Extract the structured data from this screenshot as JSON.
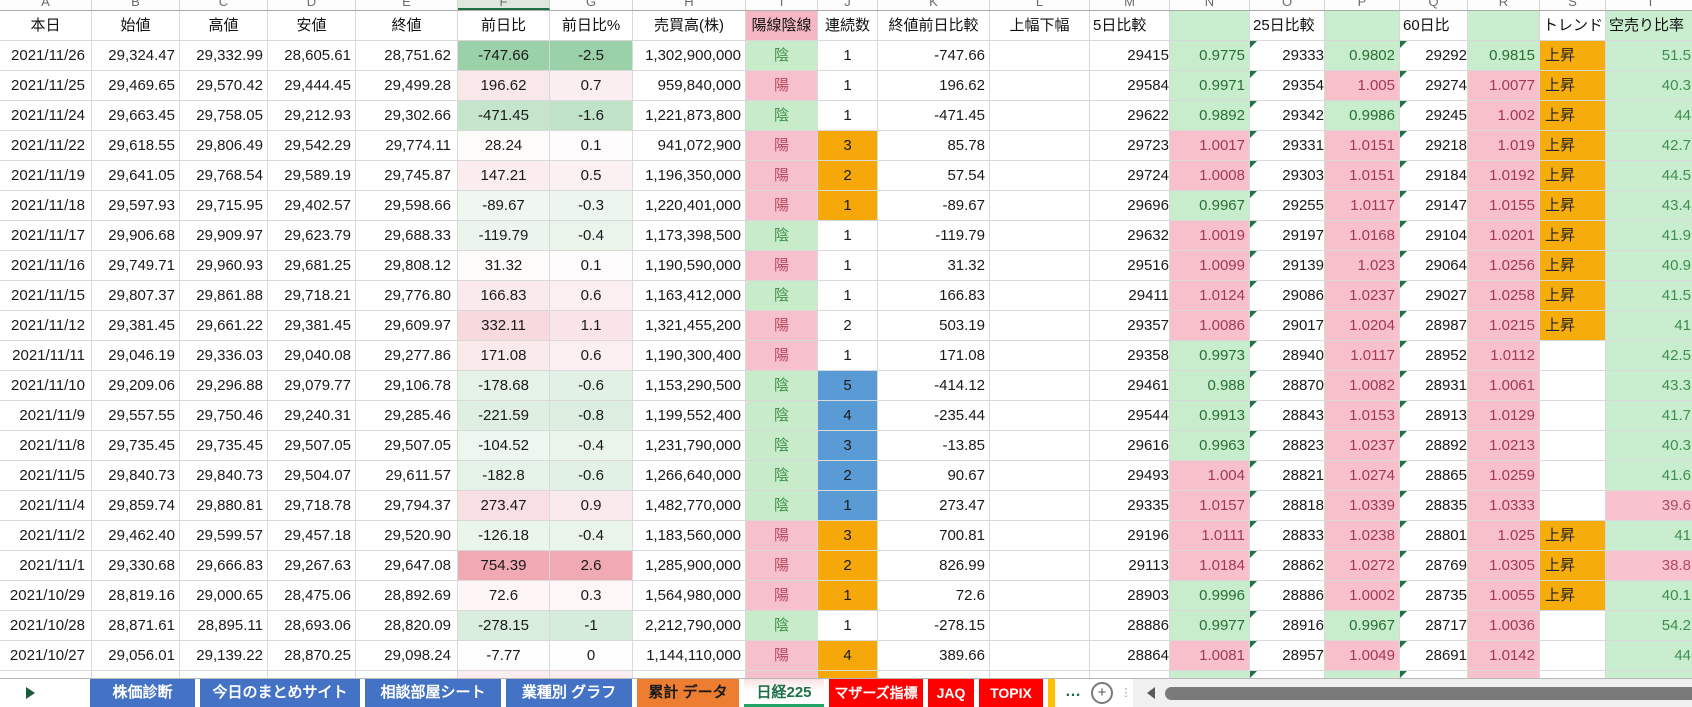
{
  "app": "spreadsheet",
  "column_letters": [
    "A",
    "B",
    "C",
    "D",
    "E",
    "F",
    "G",
    "H",
    "I",
    "J",
    "K",
    "L",
    "M",
    "N",
    "O",
    "P",
    "Q",
    "R",
    "S",
    "T"
  ],
  "selected_column_letter": "F",
  "selection": {
    "row_index": 11,
    "column": "chg",
    "value": "-178.68"
  },
  "header": {
    "cells": [
      {
        "label": "本日"
      },
      {
        "label": "始値"
      },
      {
        "label": "高値"
      },
      {
        "label": "安値"
      },
      {
        "label": "終値"
      },
      {
        "label": "前日比"
      },
      {
        "label": "前日比%"
      },
      {
        "label": "売買高(株)"
      },
      {
        "label": "陽線陰線",
        "style": "pink"
      },
      {
        "label": "連続数"
      },
      {
        "label": "終値前日比較"
      },
      {
        "label": "上幅下幅"
      },
      {
        "label": "5日比較",
        "style": "left"
      },
      {
        "label": "",
        "style": "green"
      },
      {
        "label": "25日比較",
        "style": "left"
      },
      {
        "label": "",
        "style": "green"
      },
      {
        "label": "60日比",
        "style": "left"
      },
      {
        "label": "",
        "style": "green"
      },
      {
        "label": "トレンド",
        "style": "left"
      },
      {
        "label": "空売り比率",
        "style": "greentext"
      }
    ]
  },
  "colors": {
    "accent_green": "#21a366",
    "selection_border": "#1f7245",
    "good_bg": "#c6efce",
    "bad_bg": "#ffc7ce",
    "streak_orange": "#f6a70a",
    "streak_blue": "#5b9bd5",
    "trend_orange": "#f6ad0c",
    "tab_blue": "#4472c4",
    "tab_orange": "#ed7d31",
    "tab_red": "#fe0000"
  },
  "rows": [
    {
      "date": "2021/11/26",
      "open": "29,324.47",
      "high": "29,332.99",
      "low": "28,605.61",
      "close": "28,751.62",
      "chg": "-747.66",
      "chg_bg": "#9ad1a8",
      "pct": "-2.5",
      "pct_bg": "#9ad1a8",
      "vol": "1,302,900,000",
      "candle": "陰",
      "streak": "1",
      "streak_color": "none",
      "diff": "-747.66",
      "range": "",
      "d5": "29415",
      "r5": "0.9775",
      "d25": "29333",
      "r25": "0.9802",
      "d60": "29292",
      "r60": "0.9815",
      "trend": "上昇",
      "short": "51.5",
      "short_alert": false
    },
    {
      "date": "2021/11/25",
      "open": "29,469.65",
      "high": "29,570.42",
      "low": "29,444.45",
      "close": "29,499.28",
      "chg": "196.62",
      "chg_bg": "#fae7ea",
      "pct": "0.7",
      "pct_bg": "#fbeef0",
      "vol": "959,840,000",
      "candle": "陽",
      "streak": "1",
      "streak_color": "none",
      "diff": "196.62",
      "range": "",
      "d5": "29584",
      "r5": "0.9971",
      "d25": "29354",
      "r25": "1.005",
      "d60": "29274",
      "r60": "1.0077",
      "trend": "上昇",
      "short": "40.3",
      "short_alert": false
    },
    {
      "date": "2021/11/24",
      "open": "29,663.45",
      "high": "29,758.05",
      "low": "29,212.93",
      "close": "29,302.66",
      "chg": "-471.45",
      "chg_bg": "#c4e5cb",
      "pct": "-1.6",
      "pct_bg": "#c0e3c8",
      "vol": "1,221,873,800",
      "candle": "陰",
      "streak": "1",
      "streak_color": "none",
      "diff": "-471.45",
      "range": "",
      "d5": "29622",
      "r5": "0.9892",
      "d25": "29342",
      "r25": "0.9986",
      "d60": "29245",
      "r60": "1.002",
      "trend": "上昇",
      "short": "44",
      "short_alert": false
    },
    {
      "date": "2021/11/22",
      "open": "29,618.55",
      "high": "29,806.49",
      "low": "29,542.29",
      "close": "29,774.11",
      "chg": "28.24",
      "chg_bg": "#fefbfb",
      "pct": "0.1",
      "pct_bg": "#fefcfc",
      "vol": "941,072,900",
      "candle": "陽",
      "streak": "3",
      "streak_color": "orange",
      "diff": "85.78",
      "range": "",
      "d5": "29723",
      "r5": "1.0017",
      "d25": "29331",
      "r25": "1.0151",
      "d60": "29218",
      "r60": "1.019",
      "trend": "上昇",
      "short": "42.7",
      "short_alert": false
    },
    {
      "date": "2021/11/19",
      "open": "29,641.05",
      "high": "29,768.54",
      "low": "29,589.19",
      "close": "29,745.87",
      "chg": "147.21",
      "chg_bg": "#fbecee",
      "pct": "0.5",
      "pct_bg": "#fcf1f2",
      "vol": "1,196,350,000",
      "candle": "陽",
      "streak": "2",
      "streak_color": "orange",
      "diff": "57.54",
      "range": "",
      "d5": "29724",
      "r5": "1.0008",
      "d25": "29303",
      "r25": "1.0151",
      "d60": "29184",
      "r60": "1.0192",
      "trend": "上昇",
      "short": "44.5",
      "short_alert": false
    },
    {
      "date": "2021/11/18",
      "open": "29,597.93",
      "high": "29,715.95",
      "low": "29,402.57",
      "close": "29,598.66",
      "chg": "-89.67",
      "chg_bg": "#eff7f0",
      "pct": "-0.3",
      "pct_bg": "#ecf6ee",
      "vol": "1,220,401,000",
      "candle": "陽",
      "streak": "1",
      "streak_color": "orange",
      "diff": "-89.67",
      "range": "",
      "d5": "29696",
      "r5": "0.9967",
      "d25": "29255",
      "r25": "1.0117",
      "d60": "29147",
      "r60": "1.0155",
      "trend": "上昇",
      "short": "43.4",
      "short_alert": false
    },
    {
      "date": "2021/11/17",
      "open": "29,906.68",
      "high": "29,909.97",
      "low": "29,623.79",
      "close": "29,688.33",
      "chg": "-119.79",
      "chg_bg": "#ebf5ed",
      "pct": "-0.4",
      "pct_bg": "#e9f4eb",
      "vol": "1,173,398,500",
      "candle": "陰",
      "streak": "1",
      "streak_color": "none",
      "diff": "-119.79",
      "range": "",
      "d5": "29632",
      "r5": "1.0019",
      "d25": "29197",
      "r25": "1.0168",
      "d60": "29104",
      "r60": "1.0201",
      "trend": "上昇",
      "short": "41.9",
      "short_alert": false
    },
    {
      "date": "2021/11/16",
      "open": "29,749.71",
      "high": "29,960.93",
      "low": "29,681.25",
      "close": "29,808.12",
      "chg": "31.32",
      "chg_bg": "#fefbfb",
      "pct": "0.1",
      "pct_bg": "#fefcfc",
      "vol": "1,190,590,000",
      "candle": "陽",
      "streak": "1",
      "streak_color": "none",
      "diff": "31.32",
      "range": "",
      "d5": "29516",
      "r5": "1.0099",
      "d25": "29139",
      "r25": "1.023",
      "d60": "29064",
      "r60": "1.0256",
      "trend": "上昇",
      "short": "40.9",
      "short_alert": false
    },
    {
      "date": "2021/11/15",
      "open": "29,807.37",
      "high": "29,861.88",
      "low": "29,718.21",
      "close": "29,776.80",
      "chg": "166.83",
      "chg_bg": "#fbeaed",
      "pct": "0.6",
      "pct_bg": "#fbeff1",
      "vol": "1,163,412,000",
      "candle": "陰",
      "streak": "1",
      "streak_color": "none",
      "diff": "166.83",
      "range": "",
      "d5": "29411",
      "r5": "1.0124",
      "d25": "29086",
      "r25": "1.0237",
      "d60": "29027",
      "r60": "1.0258",
      "trend": "上昇",
      "short": "41.5",
      "short_alert": false
    },
    {
      "date": "2021/11/12",
      "open": "29,381.45",
      "high": "29,661.22",
      "low": "29,381.45",
      "close": "29,609.97",
      "chg": "332.11",
      "chg_bg": "#f7d9de",
      "pct": "1.1",
      "pct_bg": "#f9e5e9",
      "vol": "1,321,455,200",
      "candle": "陽",
      "streak": "2",
      "streak_color": "none",
      "diff": "503.19",
      "range": "",
      "d5": "29357",
      "r5": "1.0086",
      "d25": "29017",
      "r25": "1.0204",
      "d60": "28987",
      "r60": "1.0215",
      "trend": "上昇",
      "short": "41",
      "short_alert": false
    },
    {
      "date": "2021/11/11",
      "open": "29,046.19",
      "high": "29,336.03",
      "low": "29,040.08",
      "close": "29,277.86",
      "chg": "171.08",
      "chg_bg": "#fbeaec",
      "pct": "0.6",
      "pct_bg": "#fbeff1",
      "vol": "1,190,300,400",
      "candle": "陽",
      "streak": "1",
      "streak_color": "none",
      "diff": "171.08",
      "range": "",
      "d5": "29358",
      "r5": "0.9973",
      "d25": "28940",
      "r25": "1.0117",
      "d60": "28952",
      "r60": "1.0112",
      "trend": "",
      "short": "42.5",
      "short_alert": false
    },
    {
      "date": "2021/11/10",
      "open": "29,209.06",
      "high": "29,296.88",
      "low": "29,079.77",
      "close": "29,106.78",
      "chg": "-178.68",
      "chg_bg": "#e4f2e7",
      "pct": "-0.6",
      "pct_bg": "#e2f1e5",
      "vol": "1,153,290,500",
      "candle": "陰",
      "streak": "5",
      "streak_color": "blue",
      "diff": "-414.12",
      "range": "",
      "d5": "29461",
      "r5": "0.988",
      "d25": "28870",
      "r25": "1.0082",
      "d60": "28931",
      "r60": "1.0061",
      "trend": "",
      "short": "43.3",
      "short_alert": false
    },
    {
      "date": "2021/11/9",
      "open": "29,557.55",
      "high": "29,750.46",
      "low": "29,240.31",
      "close": "29,285.46",
      "chg": "-221.59",
      "chg_bg": "#dff0e3",
      "pct": "-0.8",
      "pct_bg": "#dbeedf",
      "vol": "1,199,552,400",
      "candle": "陰",
      "streak": "4",
      "streak_color": "blue",
      "diff": "-235.44",
      "range": "",
      "d5": "29544",
      "r5": "0.9913",
      "d25": "28843",
      "r25": "1.0153",
      "d60": "28913",
      "r60": "1.0129",
      "trend": "",
      "short": "41.7",
      "short_alert": false
    },
    {
      "date": "2021/11/8",
      "open": "29,735.45",
      "high": "29,735.45",
      "low": "29,507.05",
      "close": "29,507.05",
      "chg": "-104.52",
      "chg_bg": "#edf6ef",
      "pct": "-0.4",
      "pct_bg": "#e9f4eb",
      "vol": "1,231,790,000",
      "candle": "陰",
      "streak": "3",
      "streak_color": "blue",
      "diff": "-13.85",
      "range": "",
      "d5": "29616",
      "r5": "0.9963",
      "d25": "28823",
      "r25": "1.0237",
      "d60": "28892",
      "r60": "1.0213",
      "trend": "",
      "short": "40.3",
      "short_alert": false
    },
    {
      "date": "2021/11/5",
      "open": "29,840.73",
      "high": "29,840.73",
      "low": "29,504.07",
      "close": "29,611.57",
      "chg": "-182.8",
      "chg_bg": "#e4f2e7",
      "pct": "-0.6",
      "pct_bg": "#e2f1e5",
      "vol": "1,266,640,000",
      "candle": "陰",
      "streak": "2",
      "streak_color": "blue",
      "diff": "90.67",
      "range": "",
      "d5": "29493",
      "r5": "1.004",
      "d25": "28821",
      "r25": "1.0274",
      "d60": "28865",
      "r60": "1.0259",
      "trend": "",
      "short": "41.6",
      "short_alert": false
    },
    {
      "date": "2021/11/4",
      "open": "29,859.74",
      "high": "29,880.81",
      "low": "29,718.78",
      "close": "29,794.37",
      "chg": "273.47",
      "chg_bg": "#f8dfe3",
      "pct": "0.9",
      "pct_bg": "#faeaed",
      "vol": "1,482,770,000",
      "candle": "陰",
      "streak": "1",
      "streak_color": "blue",
      "diff": "273.47",
      "range": "",
      "d5": "29335",
      "r5": "1.0157",
      "d25": "28818",
      "r25": "1.0339",
      "d60": "28835",
      "r60": "1.0333",
      "trend": "",
      "short": "39.6",
      "short_alert": true
    },
    {
      "date": "2021/11/2",
      "open": "29,462.40",
      "high": "29,599.57",
      "low": "29,457.18",
      "close": "29,520.90",
      "chg": "-126.18",
      "chg_bg": "#eaf5ec",
      "pct": "-0.4",
      "pct_bg": "#e9f4eb",
      "vol": "1,183,560,000",
      "candle": "陽",
      "streak": "3",
      "streak_color": "orange",
      "diff": "700.81",
      "range": "",
      "d5": "29196",
      "r5": "1.0111",
      "d25": "28833",
      "r25": "1.0238",
      "d60": "28801",
      "r60": "1.025",
      "trend": "上昇",
      "short": "41",
      "short_alert": false
    },
    {
      "date": "2021/11/1",
      "open": "29,330.68",
      "high": "29,666.83",
      "low": "29,267.63",
      "close": "29,647.08",
      "chg": "754.39",
      "chg_bg": "#f1aab4",
      "pct": "2.6",
      "pct_bg": "#f1aab4",
      "vol": "1,285,900,000",
      "candle": "陽",
      "streak": "2",
      "streak_color": "orange",
      "diff": "826.99",
      "range": "",
      "d5": "29113",
      "r5": "1.0184",
      "d25": "28862",
      "r25": "1.0272",
      "d60": "28769",
      "r60": "1.0305",
      "trend": "上昇",
      "short": "38.8",
      "short_alert": true
    },
    {
      "date": "2021/10/29",
      "open": "28,819.16",
      "high": "29,000.65",
      "low": "28,475.06",
      "close": "28,892.69",
      "chg": "72.6",
      "chg_bg": "#fdf5f6",
      "pct": "0.3",
      "pct_bg": "#fdf7f8",
      "vol": "1,564,980,000",
      "candle": "陽",
      "streak": "1",
      "streak_color": "orange",
      "diff": "72.6",
      "range": "",
      "d5": "28903",
      "r5": "0.9996",
      "d25": "28886",
      "r25": "1.0002",
      "d60": "28735",
      "r60": "1.0055",
      "trend": "上昇",
      "short": "40.1",
      "short_alert": false
    },
    {
      "date": "2021/10/28",
      "open": "28,871.61",
      "high": "28,895.11",
      "low": "28,693.06",
      "close": "28,820.09",
      "chg": "-278.15",
      "chg_bg": "#d9eedd",
      "pct": "-1",
      "pct_bg": "#d5ecda",
      "vol": "2,212,790,000",
      "candle": "陰",
      "streak": "1",
      "streak_color": "none",
      "diff": "-278.15",
      "range": "",
      "d5": "28886",
      "r5": "0.9977",
      "d25": "28916",
      "r25": "0.9967",
      "d60": "28717",
      "r60": "1.0036",
      "trend": "",
      "short": "54.2",
      "short_alert": false
    },
    {
      "date": "2021/10/27",
      "open": "29,056.01",
      "high": "29,139.22",
      "low": "28,870.25",
      "close": "29,098.24",
      "chg": "-7.77",
      "chg_bg": "#fdfefd",
      "pct": "0",
      "pct_bg": "#fefefe",
      "vol": "1,144,110,000",
      "candle": "陽",
      "streak": "4",
      "streak_color": "orange",
      "diff": "389.66",
      "range": "",
      "d5": "28864",
      "r5": "1.0081",
      "d25": "28957",
      "r25": "1.0049",
      "d60": "28691",
      "r60": "1.0142",
      "trend": "",
      "short": "44",
      "short_alert": false
    }
  ],
  "partial_row_present": true,
  "tab_bar": {
    "tabs": [
      {
        "label": "株価診断",
        "color": "blue"
      },
      {
        "label": "今日のまとめサイト",
        "color": "blue"
      },
      {
        "label": "相談部屋シート",
        "color": "blue"
      },
      {
        "label": "業種別 グラフ",
        "color": "blue"
      },
      {
        "label": "累計 データ",
        "color": "orange"
      },
      {
        "label": "日経225",
        "color": "active"
      },
      {
        "label": "マザーズ指標",
        "color": "red"
      },
      {
        "label": "JAQ",
        "color": "red"
      },
      {
        "label": "TOPIX",
        "color": "red"
      }
    ],
    "active_tab": "日経225",
    "more_label": "…",
    "add_label": "+"
  }
}
